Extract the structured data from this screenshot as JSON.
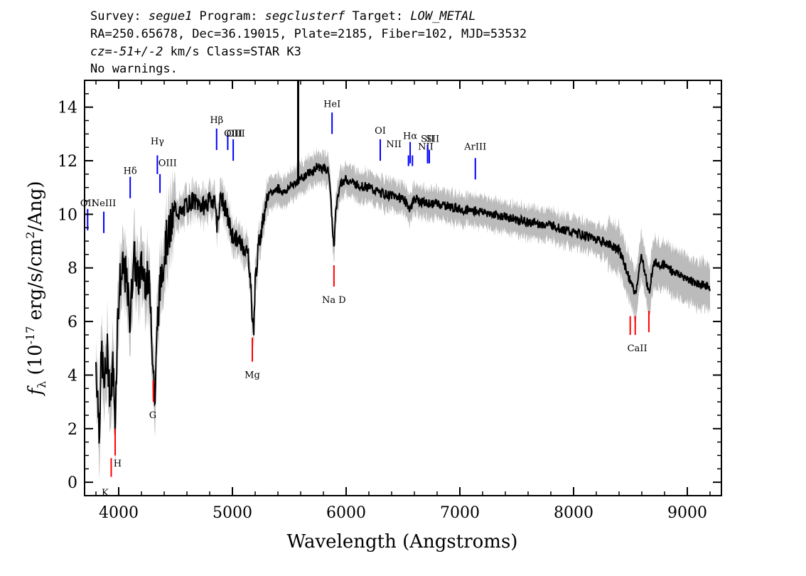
{
  "header": {
    "line1_a": "Survey: ",
    "line1_survey": "segue1",
    "line1_b": " Program: ",
    "line1_program": "segclusterf",
    "line1_c": " Target: ",
    "line1_target": "LOW_METAL",
    "line2": "RA=250.65678, Dec=36.19015, Plate=2185, Fiber=102, MJD=53532",
    "line3_a": "cz=",
    "line3_cz": "-51+/-2",
    "line3_b": " km/s Class=STAR K3",
    "line4": "No warnings."
  },
  "chart_data": {
    "type": "line",
    "xlabel": "Wavelength (Angstroms)",
    "ylabel": "f_λ (10^-17 erg/s/cm^2/Ang)",
    "ylabel_parts": {
      "f": "f",
      "sub": "λ",
      "pre": " (10",
      "exp1": "-17",
      "mid": " erg/s/cm",
      "exp2": "2",
      "post": "/Ang)"
    },
    "xlim": [
      3700,
      9300
    ],
    "ylim": [
      -0.5,
      15
    ],
    "xticks": [
      4000,
      5000,
      6000,
      7000,
      8000,
      9000
    ],
    "yticks": [
      0,
      2,
      4,
      6,
      8,
      10,
      12,
      14
    ],
    "colors": {
      "flux": "#000000",
      "noise": "#bbbbbb",
      "emission": "#0000ff",
      "absorption": "#ff0000"
    },
    "series": [
      {
        "kind": "flux",
        "x": [
          3800,
          3830,
          3850,
          3870,
          3900,
          3930,
          3950,
          3968,
          3990,
          4010,
          4050,
          4080,
          4101,
          4130,
          4170,
          4200,
          4250,
          4280,
          4300,
          4320,
          4340,
          4380,
          4420,
          4460,
          4500,
          4550,
          4600,
          4650,
          4700,
          4750,
          4800,
          4850,
          4861,
          4900,
          4950,
          5000,
          5050,
          5100,
          5140,
          5160,
          5175,
          5190,
          5200,
          5230,
          5270,
          5300,
          5350,
          5400,
          5450,
          5500,
          5550,
          5600,
          5650,
          5700,
          5750,
          5800,
          5850,
          5880,
          5893,
          5905,
          5950,
          6000,
          6100,
          6200,
          6300,
          6400,
          6500,
          6563,
          6600,
          6700,
          6800,
          6900,
          7000,
          7200,
          7400,
          7600,
          7800,
          8000,
          8200,
          8400,
          8498,
          8542,
          8600,
          8662,
          8700,
          8800,
          8900,
          9000,
          9100,
          9200
        ],
        "y": [
          4.5,
          2.0,
          5.0,
          3.5,
          4.8,
          3.0,
          4.5,
          2.2,
          6.0,
          7.5,
          8.0,
          7.0,
          6.0,
          8.5,
          7.5,
          8.0,
          7.5,
          7.0,
          4.5,
          3.0,
          6.0,
          8.0,
          9.0,
          9.5,
          10.2,
          10.0,
          10.4,
          10.5,
          10.4,
          10.3,
          10.5,
          10.6,
          9.5,
          10.7,
          10.0,
          9.2,
          9.0,
          8.8,
          8.5,
          7.5,
          6.0,
          5.8,
          7.5,
          8.8,
          9.8,
          10.6,
          10.8,
          11.0,
          10.8,
          11.0,
          11.2,
          11.3,
          11.5,
          11.6,
          11.8,
          11.7,
          11.6,
          9.5,
          8.7,
          10.0,
          11.2,
          11.3,
          11.1,
          11.0,
          10.8,
          10.7,
          10.6,
          10.2,
          10.6,
          10.4,
          10.4,
          10.3,
          10.2,
          10.1,
          9.9,
          9.7,
          9.6,
          9.3,
          9.1,
          8.7,
          7.5,
          7.0,
          8.5,
          7.0,
          8.2,
          8.1,
          7.8,
          7.6,
          7.4,
          7.3
        ]
      }
    ],
    "emission_lines": [
      {
        "label": "OII",
        "x": 3727,
        "y0": 9.4,
        "y1": 10.2,
        "lx": 3727,
        "ly": 10.2
      },
      {
        "label": "NeIII",
        "x": 3869,
        "y0": 9.3,
        "y1": 10.1,
        "lx": 3869,
        "ly": 10.2
      },
      {
        "label": "Hδ",
        "x": 4101,
        "y0": 10.6,
        "y1": 11.4,
        "lx": 4101,
        "ly": 11.4
      },
      {
        "label": "Hγ",
        "x": 4340,
        "y0": 11.5,
        "y1": 12.2,
        "lx": 4340,
        "ly": 12.5
      },
      {
        "label": "OIII",
        "x": 4363,
        "y0": 10.8,
        "y1": 11.5,
        "lx": 4430,
        "ly": 11.7
      },
      {
        "label": "Hβ",
        "x": 4861,
        "y0": 12.4,
        "y1": 13.2,
        "lx": 4861,
        "ly": 13.3
      },
      {
        "label": "OIII",
        "x": 4959,
        "y0": 12.4,
        "y1": 13.0,
        "lx": 5030,
        "ly": 12.8
      },
      {
        "label": "OIII",
        "x": 5007,
        "y0": 12.0,
        "y1": 12.8,
        "lx": 5007,
        "ly": 12.8
      },
      {
        "label": "HeI",
        "x": 5876,
        "y0": 13.0,
        "y1": 13.8,
        "lx": 5876,
        "ly": 13.9
      },
      {
        "label": "OI",
        "x": 6300,
        "y0": 12.0,
        "y1": 12.8,
        "lx": 6300,
        "ly": 12.9
      },
      {
        "label": "NII",
        "x": 6548,
        "y0": 11.8,
        "y1": 12.2,
        "lx": 6420,
        "ly": 12.4
      },
      {
        "label": "Hα",
        "x": 6563,
        "y0": 11.9,
        "y1": 12.7,
        "lx": 6563,
        "ly": 12.7
      },
      {
        "label": "NII",
        "x": 6583,
        "y0": 11.8,
        "y1": 12.2,
        "lx": 6700,
        "ly": 12.3
      },
      {
        "label": "SII",
        "x": 6716,
        "y0": 11.9,
        "y1": 12.6,
        "lx": 6716,
        "ly": 12.6
      },
      {
        "label": "SII",
        "x": 6731,
        "y0": 11.9,
        "y1": 12.4,
        "lx": 6760,
        "ly": 12.6
      },
      {
        "label": "ArIII",
        "x": 7136,
        "y0": 11.3,
        "y1": 12.1,
        "lx": 7136,
        "ly": 12.3
      }
    ],
    "absorption_lines": [
      {
        "label": "K",
        "x": 3934,
        "y0": 0.2,
        "y1": 0.9,
        "lx": 3880,
        "ly": -0.4
      },
      {
        "label": "H",
        "x": 3969,
        "y0": 1.0,
        "y1": 2.0,
        "lx": 3990,
        "ly": 0.7
      },
      {
        "label": "G",
        "x": 4305,
        "y0": 3.8,
        "y1": 3.0,
        "lx": 4300,
        "ly": 2.5
      },
      {
        "label": "Mg",
        "x": 5175,
        "y0": 5.4,
        "y1": 4.5,
        "lx": 5175,
        "ly": 4.0
      },
      {
        "label": "Na D",
        "x": 5893,
        "y0": 8.1,
        "y1": 7.3,
        "lx": 5893,
        "ly": 6.8
      },
      {
        "label": "CaII",
        "x": 8498,
        "y0": 6.2,
        "y1": 5.5,
        "lx": 8560,
        "ly": 5.0
      },
      {
        "label": "",
        "x": 8542,
        "y0": 6.2,
        "y1": 5.5,
        "lx": 8542,
        "ly": 5.5
      },
      {
        "label": "",
        "x": 8662,
        "y0": 6.4,
        "y1": 5.6,
        "lx": 8662,
        "ly": 5.6
      }
    ],
    "spike": {
      "x": 5578,
      "y": 15
    }
  }
}
